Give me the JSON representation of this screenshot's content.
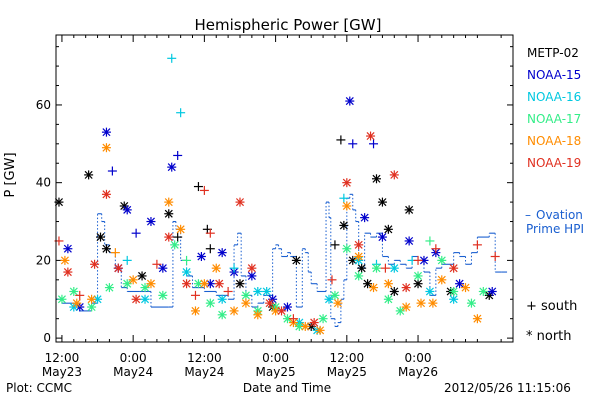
{
  "chart_data": {
    "type": "scatter",
    "title": "Hemispheric Power [GW]",
    "ylabel": "P [GW]",
    "xlabel": "Date and Time",
    "ylim": [
      -1,
      78
    ],
    "xlim": [
      -1,
      76
    ],
    "x_unit": "hours since 2012-05-23 12:00 UT",
    "yticks": [
      0,
      20,
      40,
      60
    ],
    "xticks": [
      {
        "x": 0,
        "top": "12:00",
        "bottom": "May23"
      },
      {
        "x": 12,
        "top": "0:00",
        "bottom": "May24"
      },
      {
        "x": 24,
        "top": "12:00",
        "bottom": "May24"
      },
      {
        "x": 36,
        "top": "0:00",
        "bottom": "May25"
      },
      {
        "x": 48,
        "top": "12:00",
        "bottom": "May25"
      },
      {
        "x": 60,
        "top": "0:00",
        "bottom": "May26"
      }
    ],
    "legend_position": "right",
    "marker_legend": [
      {
        "symbol": "+",
        "label": "south"
      },
      {
        "symbol": "*",
        "label": "north"
      }
    ],
    "series": [
      {
        "name": "METP-02",
        "color": "#000000",
        "points": [
          [
            -0.5,
            35,
            "n"
          ],
          [
            4.5,
            42,
            "n"
          ],
          [
            6.5,
            26,
            "n"
          ],
          [
            7.5,
            23,
            "n"
          ],
          [
            10.5,
            34,
            "n"
          ],
          [
            13.5,
            16,
            "n"
          ],
          [
            18,
            32,
            "n"
          ],
          [
            19.5,
            26,
            "s"
          ],
          [
            23,
            39,
            "s"
          ],
          [
            24.5,
            28,
            "s"
          ],
          [
            25,
            23,
            "s"
          ],
          [
            30,
            14,
            "n"
          ],
          [
            35.5,
            8,
            "n"
          ],
          [
            39.5,
            20,
            "n"
          ],
          [
            42,
            3,
            "n"
          ],
          [
            46,
            24,
            "s"
          ],
          [
            47,
            51,
            "s"
          ],
          [
            47.5,
            29,
            "n"
          ],
          [
            49,
            20,
            "n"
          ],
          [
            50.5,
            18,
            "n"
          ],
          [
            51.5,
            14,
            "n"
          ],
          [
            53,
            41,
            "n"
          ],
          [
            54,
            35,
            "n"
          ],
          [
            55,
            28,
            "n"
          ],
          [
            56,
            12,
            "n"
          ],
          [
            58.5,
            33,
            "n"
          ],
          [
            60,
            14,
            "n"
          ],
          [
            65.5,
            12,
            "n"
          ],
          [
            72,
            11,
            "n"
          ]
        ]
      },
      {
        "name": "NOAA-15",
        "color": "#0000cc",
        "points": [
          [
            1,
            23,
            "n"
          ],
          [
            3,
            8,
            "n"
          ],
          [
            7.5,
            53,
            "n"
          ],
          [
            8.5,
            43,
            "s"
          ],
          [
            9.5,
            18,
            "n"
          ],
          [
            11,
            33,
            "n"
          ],
          [
            12.5,
            27,
            "s"
          ],
          [
            15,
            30,
            "n"
          ],
          [
            17,
            18,
            "n"
          ],
          [
            18.5,
            44,
            "n"
          ],
          [
            19.5,
            47,
            "s"
          ],
          [
            23.5,
            21,
            "n"
          ],
          [
            25,
            14,
            "n"
          ],
          [
            27,
            22,
            "n"
          ],
          [
            29,
            17,
            "n"
          ],
          [
            32,
            16,
            "n"
          ],
          [
            35.5,
            10,
            "n"
          ],
          [
            38,
            8,
            "n"
          ],
          [
            48.5,
            61,
            "n"
          ],
          [
            49,
            50,
            "s"
          ],
          [
            51,
            31,
            "n"
          ],
          [
            52.5,
            50,
            "s"
          ],
          [
            54,
            26,
            "n"
          ],
          [
            58.5,
            25,
            "n"
          ],
          [
            61,
            20,
            "n"
          ],
          [
            63,
            22,
            "n"
          ],
          [
            67,
            14,
            "n"
          ],
          [
            72.5,
            12,
            "n"
          ]
        ]
      },
      {
        "name": "NOAA-16",
        "color": "#00c8e0",
        "points": [
          [
            2,
            8,
            "n"
          ],
          [
            6,
            10,
            "n"
          ],
          [
            11,
            20,
            "s"
          ],
          [
            14,
            10,
            "n"
          ],
          [
            18.5,
            72,
            "s"
          ],
          [
            20,
            58,
            "s"
          ],
          [
            21,
            17,
            "n"
          ],
          [
            27,
            10,
            "n"
          ],
          [
            29,
            18,
            "s"
          ],
          [
            33,
            12,
            "n"
          ],
          [
            34.5,
            12,
            "n"
          ],
          [
            40,
            4,
            "n"
          ],
          [
            43,
            2,
            "n"
          ],
          [
            45,
            10,
            "n"
          ],
          [
            47.5,
            36,
            "s"
          ],
          [
            50,
            20,
            "n"
          ],
          [
            53,
            19,
            "s"
          ],
          [
            56,
            18,
            "n"
          ],
          [
            59,
            20,
            "s"
          ],
          [
            62,
            12,
            "n"
          ],
          [
            66,
            10,
            "n"
          ]
        ]
      },
      {
        "name": "NOAA-17",
        "color": "#33ee88",
        "points": [
          [
            0,
            10,
            "n"
          ],
          [
            2,
            12,
            "n"
          ],
          [
            5,
            8,
            "n"
          ],
          [
            8,
            13,
            "n"
          ],
          [
            11,
            14,
            "n"
          ],
          [
            14,
            13,
            "n"
          ],
          [
            17,
            11,
            "n"
          ],
          [
            19,
            24,
            "n"
          ],
          [
            21,
            20,
            "s"
          ],
          [
            23,
            14,
            "n"
          ],
          [
            25,
            9,
            "n"
          ],
          [
            27,
            6,
            "n"
          ],
          [
            31,
            11,
            "n"
          ],
          [
            33,
            7,
            "n"
          ],
          [
            36,
            8,
            "n"
          ],
          [
            38,
            5,
            "n"
          ],
          [
            40,
            3,
            "n"
          ],
          [
            44,
            5,
            "n"
          ],
          [
            46,
            11,
            "n"
          ],
          [
            48,
            23,
            "n"
          ],
          [
            50,
            16,
            "n"
          ],
          [
            53,
            18,
            "n"
          ],
          [
            55,
            10,
            "n"
          ],
          [
            57,
            7,
            "n"
          ],
          [
            60,
            16,
            "n"
          ],
          [
            62,
            25,
            "s"
          ],
          [
            64,
            20,
            "n"
          ],
          [
            66,
            12,
            "n"
          ],
          [
            69,
            9,
            "n"
          ],
          [
            71,
            12,
            "n"
          ]
        ]
      },
      {
        "name": "NOAA-18",
        "color": "#ff8c00",
        "points": [
          [
            0.5,
            20,
            "n"
          ],
          [
            2.5,
            9,
            "n"
          ],
          [
            5,
            10,
            "n"
          ],
          [
            7.5,
            49,
            "n"
          ],
          [
            9,
            22,
            "s"
          ],
          [
            12,
            15,
            "n"
          ],
          [
            15,
            14,
            "n"
          ],
          [
            18,
            35,
            "n"
          ],
          [
            20,
            28,
            "n"
          ],
          [
            22.5,
            7,
            "n"
          ],
          [
            24,
            14,
            "n"
          ],
          [
            26,
            18,
            "n"
          ],
          [
            29,
            7,
            "n"
          ],
          [
            31,
            9,
            "n"
          ],
          [
            33,
            6,
            "n"
          ],
          [
            36,
            7,
            "n"
          ],
          [
            39,
            4,
            "n"
          ],
          [
            41,
            3,
            "n"
          ],
          [
            43.5,
            2,
            "n"
          ],
          [
            46.5,
            9,
            "n"
          ],
          [
            48,
            34,
            "n"
          ],
          [
            50,
            21,
            "n"
          ],
          [
            52.5,
            13,
            "n"
          ],
          [
            55,
            14,
            "n"
          ],
          [
            58,
            8,
            "n"
          ],
          [
            60.5,
            9,
            "n"
          ],
          [
            62.5,
            9,
            "n"
          ],
          [
            64,
            15,
            "n"
          ],
          [
            68,
            13,
            "n"
          ],
          [
            70,
            5,
            "n"
          ]
        ]
      },
      {
        "name": "NOAA-19",
        "color": "#e03020",
        "points": [
          [
            -0.5,
            25,
            "s"
          ],
          [
            1,
            17,
            "n"
          ],
          [
            3,
            11,
            "s"
          ],
          [
            5.5,
            19,
            "n"
          ],
          [
            7.5,
            37,
            "n"
          ],
          [
            9.5,
            18,
            "n"
          ],
          [
            12.5,
            10,
            "n"
          ],
          [
            16,
            19,
            "s"
          ],
          [
            18,
            26,
            "n"
          ],
          [
            21,
            14,
            "n"
          ],
          [
            22.5,
            11,
            "s"
          ],
          [
            24,
            38,
            "s"
          ],
          [
            25,
            27,
            "s"
          ],
          [
            26.5,
            14,
            "n"
          ],
          [
            28,
            12,
            "s"
          ],
          [
            30,
            35,
            "n"
          ],
          [
            32,
            18,
            "n"
          ],
          [
            35,
            9,
            "n"
          ],
          [
            37,
            7,
            "n"
          ],
          [
            39,
            5,
            "s"
          ],
          [
            42.5,
            4,
            "n"
          ],
          [
            45.5,
            15,
            "s"
          ],
          [
            48,
            40,
            "n"
          ],
          [
            50,
            24,
            "n"
          ],
          [
            52,
            52,
            "n"
          ],
          [
            54.5,
            18,
            "s"
          ],
          [
            56,
            42,
            "n"
          ],
          [
            58,
            13,
            "n"
          ],
          [
            60,
            20,
            "s"
          ],
          [
            63,
            23,
            "s"
          ],
          [
            66,
            18,
            "n"
          ],
          [
            70,
            24,
            "s"
          ],
          [
            73,
            21,
            "s"
          ]
        ]
      }
    ],
    "ovation": {
      "name": "Ovation Prime HPI",
      "color": "#1a5fd0",
      "legend_dash": "–",
      "steps": [
        [
          -1,
          10
        ],
        [
          0,
          9
        ],
        [
          3,
          7
        ],
        [
          5,
          9
        ],
        [
          6,
          32
        ],
        [
          6.7,
          30
        ],
        [
          7.2,
          24
        ],
        [
          8,
          22
        ],
        [
          9,
          18
        ],
        [
          10,
          13
        ],
        [
          11,
          12
        ],
        [
          13,
          12
        ],
        [
          15,
          8
        ],
        [
          18,
          8
        ],
        [
          18.7,
          30
        ],
        [
          19.2,
          28
        ],
        [
          20,
          20
        ],
        [
          21,
          16
        ],
        [
          22,
          13
        ],
        [
          24,
          12
        ],
        [
          26,
          11
        ],
        [
          28,
          10
        ],
        [
          29,
          24
        ],
        [
          29.6,
          27
        ],
        [
          30.2,
          16
        ],
        [
          31,
          11
        ],
        [
          32,
          8
        ],
        [
          33,
          9
        ],
        [
          34,
          11
        ],
        [
          35.5,
          23
        ],
        [
          36,
          24
        ],
        [
          36.5,
          23
        ],
        [
          37,
          21
        ],
        [
          38,
          22
        ],
        [
          38.5,
          21
        ],
        [
          39.5,
          8
        ],
        [
          40.5,
          23
        ],
        [
          41,
          22
        ],
        [
          41.5,
          17
        ],
        [
          42,
          14
        ],
        [
          43,
          12
        ],
        [
          44.5,
          35
        ],
        [
          45,
          31
        ],
        [
          45.3,
          5
        ],
        [
          46,
          3
        ],
        [
          46.5,
          4
        ],
        [
          47,
          10
        ],
        [
          47.5,
          15
        ],
        [
          48,
          36
        ],
        [
          48.5,
          37
        ],
        [
          49,
          33
        ],
        [
          49.5,
          30
        ],
        [
          50,
          18
        ],
        [
          51,
          27
        ],
        [
          52,
          26
        ],
        [
          53,
          27
        ],
        [
          54,
          21
        ],
        [
          55,
          19
        ],
        [
          56,
          20
        ],
        [
          57,
          19
        ],
        [
          58,
          18
        ],
        [
          59,
          21
        ],
        [
          60,
          20
        ],
        [
          61,
          17
        ],
        [
          62,
          11
        ],
        [
          63,
          18
        ],
        [
          64,
          19
        ],
        [
          66,
          22
        ],
        [
          67,
          21
        ],
        [
          68,
          19
        ],
        [
          69,
          22
        ],
        [
          70,
          26
        ],
        [
          72,
          27
        ],
        [
          73,
          17
        ],
        [
          74,
          17
        ]
      ]
    }
  },
  "footer": {
    "plot_credit": "Plot: CCMC",
    "timestamp": "2012/05/26 11:15:06"
  }
}
